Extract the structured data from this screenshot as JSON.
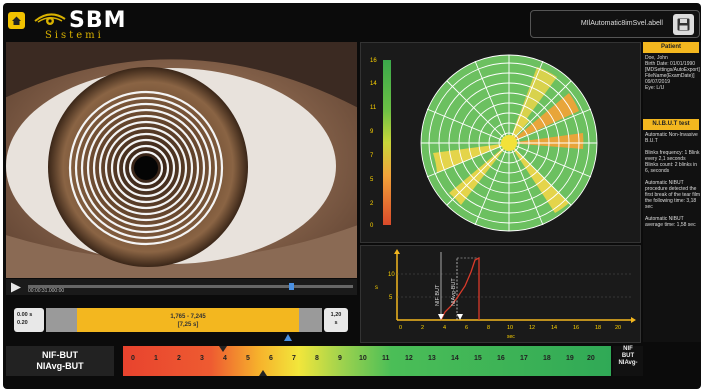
{
  "header": {
    "logo_text": "SBM",
    "logo_sub": "Sistemi",
    "file_name": "MIlAutomatic8imSvel.abell"
  },
  "video": {
    "time": "00:00:31.000:00"
  },
  "range": {
    "left_top": "0.00 s",
    "left_bottom": "0.20",
    "center_top": "1,765 - 7,245",
    "center_bottom": "[7,25 s]",
    "right_top": "1,20",
    "right_bottom": "s"
  },
  "map": {
    "scale_labels": [
      "16",
      "14",
      "11",
      "9",
      "7",
      "5",
      "2",
      "0"
    ]
  },
  "graph": {
    "y_label": "s",
    "x_label": "sec",
    "x_ticks": [
      "0",
      "2",
      "4",
      "6",
      "8",
      "10",
      "12",
      "14",
      "16",
      "18",
      "20"
    ],
    "y_ticks": [
      "10",
      "5"
    ],
    "annotations": [
      "NIF BUT",
      "NIAvg-BUT"
    ]
  },
  "side": {
    "patient_head": "Patient",
    "patient_lines": [
      "Doe, John",
      "Birth Date: 01/01/1990",
      "[MDSettings/AutoExport]",
      "FileName(ExamDate)]",
      "09/07/2019",
      "Eye: L/U"
    ],
    "test_head": "N.I.B.U.T test",
    "test_lines": [
      "Automatic Non-Invasive",
      "B.U.T",
      "",
      "Blinks frequency: 1 Blink",
      "every 2,1 seconds",
      "Blinks count: 2 blinks in",
      "6, seconds",
      "",
      "Automatic NIBUT",
      "procedure detected the",
      "first break of the tear film",
      "the following time: 3,18",
      "sec",
      "",
      "Automatic NIBUT",
      "average time: 1,58 sec"
    ]
  },
  "bottom": {
    "label_1": "NIF-BUT",
    "label_2": "NIAvg-BUT",
    "ticks": [
      "0",
      "1",
      "2",
      "3",
      "4",
      "5",
      "6",
      "7",
      "8",
      "9",
      "10",
      "11",
      "12",
      "13",
      "14",
      "15",
      "16",
      "17",
      "18",
      "19",
      "20"
    ],
    "right_1": "NIF",
    "right_2": "BUT",
    "right_3": "NIAvg-"
  }
}
